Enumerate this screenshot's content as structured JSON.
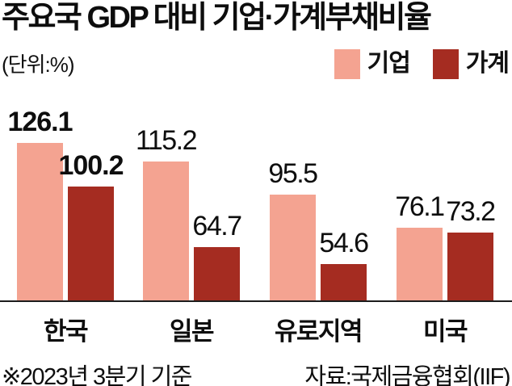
{
  "title": "주요국 GDP 대비 기업·가계부채비율",
  "unit_label": "(단위:%)",
  "legend": [
    {
      "label": "기업",
      "color": "#f4a391"
    },
    {
      "label": "가계",
      "color": "#a52c21"
    }
  ],
  "footnote": "※2023년 3분기 기준",
  "source": "자료:국제금융협회(IIF)",
  "colors": {
    "corporate_bar": "#f4a391",
    "household_bar": "#a52c21",
    "axis_line": "#1c1c1c",
    "text": "#0e0e0e",
    "background": "#ffffff"
  },
  "chart_data": {
    "type": "bar",
    "categories": [
      "한국",
      "일본",
      "유로지역",
      "미국"
    ],
    "series": [
      {
        "name": "기업",
        "values": [
          126.1,
          115.2,
          95.5,
          76.1
        ],
        "color": "#f4a391"
      },
      {
        "name": "가계",
        "values": [
          100.2,
          64.7,
          54.6,
          73.2
        ],
        "color": "#a52c21"
      }
    ],
    "title": "주요국 GDP 대비 기업·가계부채비율",
    "xlabel": "",
    "ylabel": "(단위:%)",
    "ylim": [
      32.6,
      135
    ],
    "grid": false,
    "legend_position": "top-right",
    "value_labels": true,
    "emphasized_category": "한국",
    "note": "※2023년 3분기 기준",
    "source": "자료:국제금융협회(IIF)"
  }
}
